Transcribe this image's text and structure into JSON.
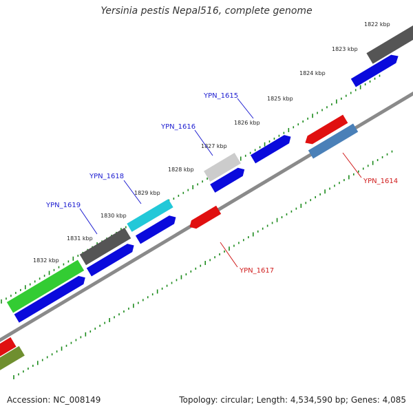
{
  "title": "Yersinia pestis Nepal516, complete genome",
  "footer": {
    "accession": "Accession: NC_008149",
    "stats": "Topology: circular; Length: 4,534,590 bp; Genes: 4,085"
  },
  "tick_labels": [
    "1822 kbp",
    "1823 kbp",
    "1824 kbp",
    "1825 kbp",
    "1826 kbp",
    "1827 kbp",
    "1828 kbp",
    "1829 kbp",
    "1830 kbp",
    "1831 kbp",
    "1832 kbp"
  ],
  "gene_labels": {
    "forward": [
      "YPN_1615",
      "YPN_1616",
      "YPN_1618",
      "YPN_1619"
    ],
    "reverse": [
      "YPN_1614",
      "YPN_1617"
    ]
  },
  "colors": {
    "axis": "#8a8a8a",
    "tick": "#1a8a1a",
    "label_forward": "#1a1ad0",
    "label_reverse": "#d01a1a",
    "gene_blue": "#0a0adc",
    "gene_red": "#e01010",
    "gene_dark_gray": "#555555",
    "gene_light_gray": "#cccccc",
    "gene_cyan": "#22c8d8",
    "gene_green": "#33cc33",
    "gene_steel": "#4a80b8",
    "gene_olive": "#6f8f2f"
  }
}
